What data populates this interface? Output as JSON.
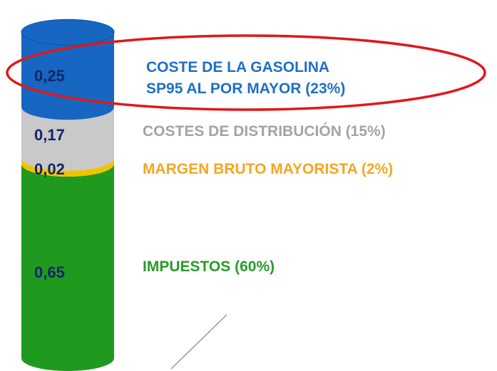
{
  "chart_data": {
    "type": "bar",
    "stacked": true,
    "series": [
      {
        "name": "IMPUESTOS (60%)",
        "color": "#1f9a1f",
        "text_color": "#2a9a2a",
        "values": [
          0.65
        ],
        "value_labels": [
          "0,65"
        ]
      },
      {
        "name": "MARGEN BRUTO MAYORISTA (2%)",
        "color": "#f2c200",
        "text_color": "#f5a623",
        "values": [
          0.02
        ],
        "value_labels": [
          "0,02"
        ]
      },
      {
        "name": "COSTES DE DISTRIBUCIÓN (15%)",
        "color": "#c9c9c9",
        "text_color": "#a3a3a3",
        "values": [
          0.17
        ],
        "value_labels": [
          "0,17"
        ]
      },
      {
        "name": "COSTE DE LA GASOLINA SP95 AL POR MAYOR (23%)",
        "color": "#1766c2",
        "text_color": "#1f6fc4",
        "values": [
          0.25
        ],
        "value_labels": [
          "0,25"
        ]
      }
    ]
  }
}
